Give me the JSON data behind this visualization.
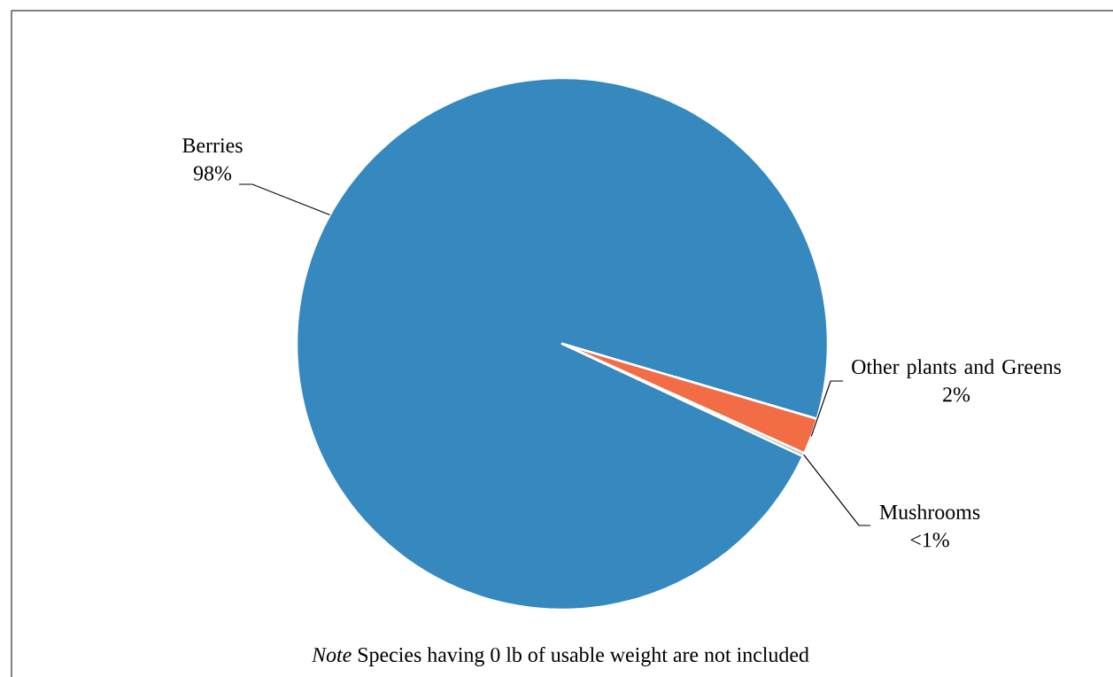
{
  "chart_data": {
    "type": "pie",
    "categories": [
      "Berries",
      "Other plants and Greens",
      "Mushrooms"
    ],
    "values": [
      97.6,
      2.2,
      0.2
    ],
    "colors": [
      "#3589bf",
      "#f26d45",
      "#a5a5a5"
    ],
    "value_labels": [
      "98%",
      "2%",
      "<1%"
    ],
    "annotations": [
      "*Note* Species having 0 lb of usable weight are not included"
    ],
    "legend": false
  }
}
